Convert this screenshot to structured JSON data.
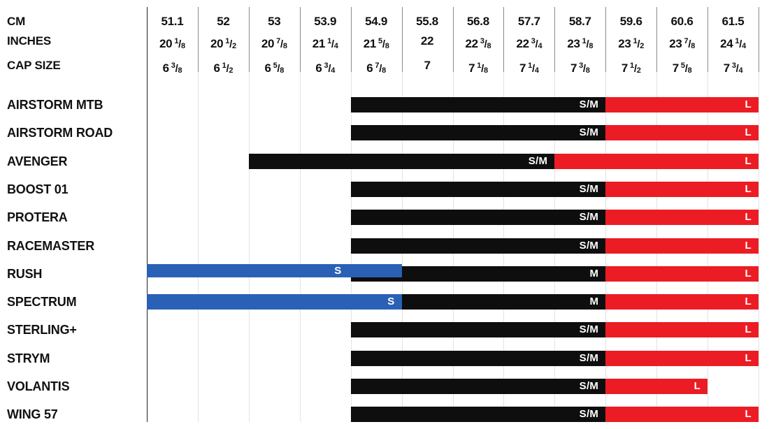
{
  "chart_data": {
    "type": "bar",
    "orientation": "horizontal-range",
    "grid": "vertical-lines",
    "fraction_separator": "/",
    "header_row_labels": [
      "CM",
      "INCHES",
      "CAP SIZE"
    ],
    "columns": [
      {
        "cm": "51.1",
        "in": {
          "w": "20",
          "n": "1",
          "d": "8"
        },
        "cap": {
          "w": "6",
          "n": "3",
          "d": "8"
        }
      },
      {
        "cm": "52",
        "in": {
          "w": "20",
          "n": "1",
          "d": "2"
        },
        "cap": {
          "w": "6",
          "n": "1",
          "d": "2"
        }
      },
      {
        "cm": "53",
        "in": {
          "w": "20",
          "n": "7",
          "d": "8"
        },
        "cap": {
          "w": "6",
          "n": "5",
          "d": "8"
        }
      },
      {
        "cm": "53.9",
        "in": {
          "w": "21",
          "n": "1",
          "d": "4"
        },
        "cap": {
          "w": "6",
          "n": "3",
          "d": "4"
        }
      },
      {
        "cm": "54.9",
        "in": {
          "w": "21",
          "n": "5",
          "d": "8"
        },
        "cap": {
          "w": "6",
          "n": "7",
          "d": "8"
        }
      },
      {
        "cm": "55.8",
        "in": {
          "w": "22"
        },
        "cap": {
          "w": "7"
        }
      },
      {
        "cm": "56.8",
        "in": {
          "w": "22",
          "n": "3",
          "d": "8"
        },
        "cap": {
          "w": "7",
          "n": "1",
          "d": "8"
        }
      },
      {
        "cm": "57.7",
        "in": {
          "w": "22",
          "n": "3",
          "d": "4"
        },
        "cap": {
          "w": "7",
          "n": "1",
          "d": "4"
        }
      },
      {
        "cm": "58.7",
        "in": {
          "w": "23",
          "n": "1",
          "d": "8"
        },
        "cap": {
          "w": "7",
          "n": "3",
          "d": "8"
        }
      },
      {
        "cm": "59.6",
        "in": {
          "w": "23",
          "n": "1",
          "d": "2"
        },
        "cap": {
          "w": "7",
          "n": "1",
          "d": "2"
        }
      },
      {
        "cm": "60.6",
        "in": {
          "w": "23",
          "n": "7",
          "d": "8"
        },
        "cap": {
          "w": "7",
          "n": "5",
          "d": "8"
        }
      },
      {
        "cm": "61.5",
        "in": {
          "w": "24",
          "n": "1",
          "d": "4"
        },
        "cap": {
          "w": "7",
          "n": "3",
          "d": "4"
        }
      }
    ],
    "colors": {
      "black": "#0e0e0e",
      "red": "#ec1c24",
      "blue": "#2a61b6"
    },
    "models": [
      {
        "name": "AIRSTORM MTB",
        "segments": [
          {
            "size": "S/M",
            "color": "black",
            "from": 4,
            "to": 9
          },
          {
            "size": "L",
            "color": "red",
            "from": 9,
            "to": 12
          }
        ]
      },
      {
        "name": "AIRSTORM ROAD",
        "segments": [
          {
            "size": "S/M",
            "color": "black",
            "from": 4,
            "to": 9
          },
          {
            "size": "L",
            "color": "red",
            "from": 9,
            "to": 12
          }
        ]
      },
      {
        "name": "AVENGER",
        "segments": [
          {
            "size": "S/M",
            "color": "black",
            "from": 2,
            "to": 8
          },
          {
            "size": "L",
            "color": "red",
            "from": 8,
            "to": 12
          }
        ]
      },
      {
        "name": "BOOST 01",
        "segments": [
          {
            "size": "S/M",
            "color": "black",
            "from": 4,
            "to": 9
          },
          {
            "size": "L",
            "color": "red",
            "from": 9,
            "to": 12
          }
        ]
      },
      {
        "name": "PROTERA",
        "segments": [
          {
            "size": "S/M",
            "color": "black",
            "from": 4,
            "to": 9
          },
          {
            "size": "L",
            "color": "red",
            "from": 9,
            "to": 12
          }
        ]
      },
      {
        "name": "RACEMASTER",
        "segments": [
          {
            "size": "S/M",
            "color": "black",
            "from": 4,
            "to": 9
          },
          {
            "size": "L",
            "color": "red",
            "from": 9,
            "to": 12
          }
        ]
      },
      {
        "name": "RUSH",
        "segments": [
          {
            "size": "M",
            "color": "black",
            "from": 4,
            "to": 9
          },
          {
            "size": "S",
            "color": "blue",
            "from": 0,
            "to": 5,
            "raised": true,
            "label_pad": 86
          },
          {
            "size": "L",
            "color": "red",
            "from": 9,
            "to": 12
          }
        ]
      },
      {
        "name": "SPECTRUM",
        "segments": [
          {
            "size": "S",
            "color": "blue",
            "from": 0,
            "to": 5
          },
          {
            "size": "M",
            "color": "black",
            "from": 5,
            "to": 9
          },
          {
            "size": "L",
            "color": "red",
            "from": 9,
            "to": 12
          }
        ]
      },
      {
        "name": "STERLING+",
        "segments": [
          {
            "size": "S/M",
            "color": "black",
            "from": 4,
            "to": 9
          },
          {
            "size": "L",
            "color": "red",
            "from": 9,
            "to": 12
          }
        ]
      },
      {
        "name": "STRYM",
        "segments": [
          {
            "size": "S/M",
            "color": "black",
            "from": 4,
            "to": 9
          },
          {
            "size": "L",
            "color": "red",
            "from": 9,
            "to": 12
          }
        ]
      },
      {
        "name": "VOLANTIS",
        "segments": [
          {
            "size": "S/M",
            "color": "black",
            "from": 4,
            "to": 9
          },
          {
            "size": "L",
            "color": "red",
            "from": 9,
            "to": 11
          }
        ]
      },
      {
        "name": "WING 57",
        "segments": [
          {
            "size": "S/M",
            "color": "black",
            "from": 4,
            "to": 9
          },
          {
            "size": "L",
            "color": "red",
            "from": 9,
            "to": 12
          }
        ]
      }
    ]
  }
}
